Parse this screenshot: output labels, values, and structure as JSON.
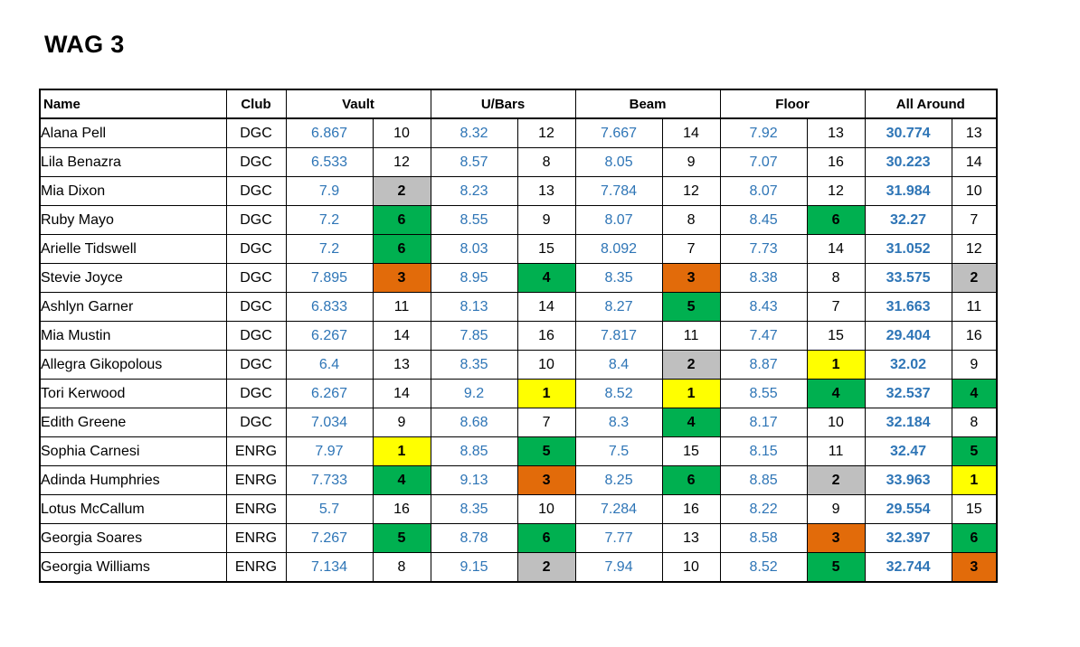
{
  "title": "WAG 3",
  "headers": {
    "name": "Name",
    "club": "Club",
    "vault": "Vault",
    "bars": "U/Bars",
    "beam": "Beam",
    "floor": "Floor",
    "all_around": "All Around"
  },
  "rank_colors": {
    "1": "#ffff00",
    "2": "#bfbfbf",
    "3": "#e26b0a",
    "4": "#00b050",
    "5": "#00b050",
    "6": "#00b050"
  },
  "score_color": "#2e75b6",
  "rows": [
    {
      "name": "Alana Pell",
      "club": "DGC",
      "vault": "6.867",
      "vault_rank": "10",
      "bars": "8.32",
      "bars_rank": "12",
      "beam": "7.667",
      "beam_rank": "14",
      "floor": "7.92",
      "floor_rank": "13",
      "aa": "30.774",
      "aa_rank": "13"
    },
    {
      "name": "Lila Benazra",
      "club": "DGC",
      "vault": "6.533",
      "vault_rank": "12",
      "bars": "8.57",
      "bars_rank": "8",
      "beam": "8.05",
      "beam_rank": "9",
      "floor": "7.07",
      "floor_rank": "16",
      "aa": "30.223",
      "aa_rank": "14"
    },
    {
      "name": "Mia Dixon",
      "club": "DGC",
      "vault": "7.9",
      "vault_rank": "2",
      "bars": "8.23",
      "bars_rank": "13",
      "beam": "7.784",
      "beam_rank": "12",
      "floor": "8.07",
      "floor_rank": "12",
      "aa": "31.984",
      "aa_rank": "10"
    },
    {
      "name": "Ruby Mayo",
      "club": "DGC",
      "vault": "7.2",
      "vault_rank": "6",
      "bars": "8.55",
      "bars_rank": "9",
      "beam": "8.07",
      "beam_rank": "8",
      "floor": "8.45",
      "floor_rank": "6",
      "aa": "32.27",
      "aa_rank": "7"
    },
    {
      "name": "Arielle Tidswell",
      "club": "DGC",
      "vault": "7.2",
      "vault_rank": "6",
      "bars": "8.03",
      "bars_rank": "15",
      "beam": "8.092",
      "beam_rank": "7",
      "floor": "7.73",
      "floor_rank": "14",
      "aa": "31.052",
      "aa_rank": "12"
    },
    {
      "name": "Stevie Joyce",
      "club": "DGC",
      "vault": "7.895",
      "vault_rank": "3",
      "bars": "8.95",
      "bars_rank": "4",
      "beam": "8.35",
      "beam_rank": "3",
      "floor": "8.38",
      "floor_rank": "8",
      "aa": "33.575",
      "aa_rank": "2"
    },
    {
      "name": "Ashlyn Garner",
      "club": "DGC",
      "vault": "6.833",
      "vault_rank": "11",
      "bars": "8.13",
      "bars_rank": "14",
      "beam": "8.27",
      "beam_rank": "5",
      "floor": "8.43",
      "floor_rank": "7",
      "aa": "31.663",
      "aa_rank": "11"
    },
    {
      "name": "Mia Mustin",
      "club": "DGC",
      "vault": "6.267",
      "vault_rank": "14",
      "bars": "7.85",
      "bars_rank": "16",
      "beam": "7.817",
      "beam_rank": "11",
      "floor": "7.47",
      "floor_rank": "15",
      "aa": "29.404",
      "aa_rank": "16"
    },
    {
      "name": "Allegra Gikopolous",
      "club": "DGC",
      "vault": "6.4",
      "vault_rank": "13",
      "bars": "8.35",
      "bars_rank": "10",
      "beam": "8.4",
      "beam_rank": "2",
      "floor": "8.87",
      "floor_rank": "1",
      "aa": "32.02",
      "aa_rank": "9"
    },
    {
      "name": "Tori Kerwood",
      "club": "DGC",
      "vault": "6.267",
      "vault_rank": "14",
      "bars": "9.2",
      "bars_rank": "1",
      "beam": "8.52",
      "beam_rank": "1",
      "floor": "8.55",
      "floor_rank": "4",
      "aa": "32.537",
      "aa_rank": "4"
    },
    {
      "name": "Edith Greene",
      "club": "DGC",
      "vault": "7.034",
      "vault_rank": "9",
      "bars": "8.68",
      "bars_rank": "7",
      "beam": "8.3",
      "beam_rank": "4",
      "floor": "8.17",
      "floor_rank": "10",
      "aa": "32.184",
      "aa_rank": "8"
    },
    {
      "name": "Sophia Carnesi",
      "club": "ENRG",
      "vault": "7.97",
      "vault_rank": "1",
      "bars": "8.85",
      "bars_rank": "5",
      "beam": "7.5",
      "beam_rank": "15",
      "floor": "8.15",
      "floor_rank": "11",
      "aa": "32.47",
      "aa_rank": "5"
    },
    {
      "name": "Adinda Humphries",
      "club": "ENRG",
      "vault": "7.733",
      "vault_rank": "4",
      "bars": "9.13",
      "bars_rank": "3",
      "beam": "8.25",
      "beam_rank": "6",
      "floor": "8.85",
      "floor_rank": "2",
      "aa": "33.963",
      "aa_rank": "1"
    },
    {
      "name": "Lotus McCallum",
      "club": "ENRG",
      "vault": "5.7",
      "vault_rank": "16",
      "bars": "8.35",
      "bars_rank": "10",
      "beam": "7.284",
      "beam_rank": "16",
      "floor": "8.22",
      "floor_rank": "9",
      "aa": "29.554",
      "aa_rank": "15"
    },
    {
      "name": "Georgia Soares",
      "club": "ENRG",
      "vault": "7.267",
      "vault_rank": "5",
      "bars": "8.78",
      "bars_rank": "6",
      "beam": "7.77",
      "beam_rank": "13",
      "floor": "8.58",
      "floor_rank": "3",
      "aa": "32.397",
      "aa_rank": "6"
    },
    {
      "name": "Georgia Williams",
      "club": "ENRG",
      "vault": "7.134",
      "vault_rank": "8",
      "bars": "9.15",
      "bars_rank": "2",
      "beam": "7.94",
      "beam_rank": "10",
      "floor": "8.52",
      "floor_rank": "5",
      "aa": "32.744",
      "aa_rank": "3"
    }
  ]
}
